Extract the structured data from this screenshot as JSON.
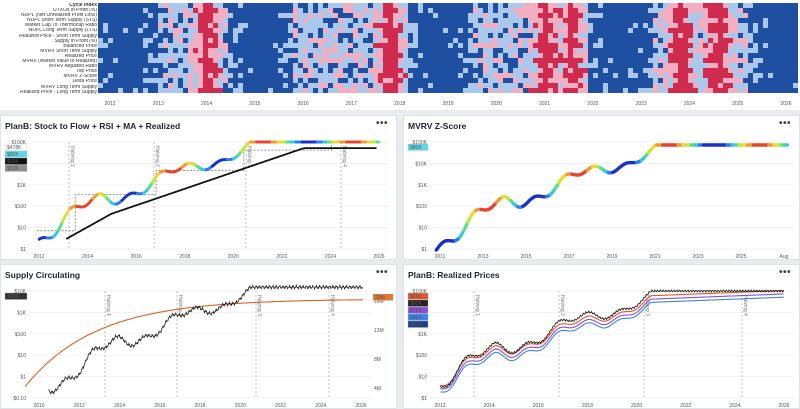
{
  "heatmap": {
    "rows": [
      "Cycle Index",
      "UTXOs in Profit (%)",
      "NUPL (Net Unrealized Profit Loss)",
      "NUPL Short Term Supply (STS)",
      "Market Cap To Thermocap Ratio",
      "NUPL Long Term Supply (LTS)",
      "Realized Price - Short Term Supply",
      "Supply in Profit (%)",
      "Balanced Price",
      "MVRV Short Term Supply",
      "Realized Price",
      "MVRV (Market Value to Realized)",
      "MVRV Adjusted Ratio",
      "Top Price",
      "MVRV Z-Score",
      "Delta Price",
      "MVRV Long Term Supply",
      "Realized Price - Long Term Supply"
    ],
    "years": [
      "2012",
      "2013",
      "2014",
      "2015",
      "2016",
      "2017",
      "2018",
      "2019",
      "2020",
      "2021",
      "2022",
      "2023",
      "2024",
      "2025",
      "2026"
    ],
    "colors": {
      "deep": "#1f4fa0",
      "light": "#a9c8ec",
      "pink": "#f3aec2",
      "red": "#d02a4e"
    }
  },
  "panels": {
    "s2f": {
      "title": "PlanB: Stock to Flow + RSI + MA + Realized",
      "menu": "•••",
      "badges": [
        {
          "text": "$478K",
          "bg": "#ffffff",
          "fg": "#333"
        },
        {
          "text": "$80K",
          "bg": "#62d6e8",
          "fg": "#fff"
        },
        {
          "text": "$65K",
          "bg": "#111111",
          "fg": "#fff"
        },
        {
          "text": "$53K",
          "bg": "#8e8e8e",
          "fg": "#fff"
        }
      ],
      "yticks": [
        "$100K",
        "$10K",
        "$1K",
        "$100",
        "$10",
        "$1"
      ],
      "xticks": [
        "2012",
        "2014",
        "2016",
        "2018",
        "2020",
        "2022",
        "2024",
        "2026"
      ],
      "halvings": [
        "Halving 1",
        "Halving 2",
        "Halving 3",
        "Halving 4"
      ]
    },
    "mvrvz": {
      "title": "MVRV Z-Score",
      "menu": "•••",
      "badges": [
        {
          "text": "$80K",
          "bg": "#62d6e8",
          "fg": "#fff"
        }
      ],
      "yticks": [
        "$100K",
        "$10K",
        "$1K",
        "$100",
        "$10",
        "$1"
      ],
      "xticks": [
        "2011",
        "2013",
        "2015",
        "2017",
        "2019",
        "2021",
        "2023",
        "2025",
        "Aug"
      ]
    },
    "supply": {
      "title": "Supply Circulating",
      "menu": "•••",
      "badges": [
        {
          "text": "$80K",
          "bg": "#333333",
          "fg": "#fff"
        }
      ],
      "right_badge": {
        "text": "20M",
        "bg": "#e07a30",
        "fg": "#fff"
      },
      "yticks": [
        "$10K",
        "$1K",
        "$100",
        "$10",
        "$1",
        "$0.10"
      ],
      "yticks_right": [
        "16M",
        "12M",
        "8M",
        "4M"
      ],
      "xticks": [
        "2010",
        "2012",
        "2014",
        "2016",
        "2018",
        "2020",
        "2022",
        "2024",
        "2026"
      ],
      "halvings": [
        "Halving 1",
        "Halving 2",
        "Halving 3",
        "Halving 4"
      ]
    },
    "realized": {
      "title": "PlanB: Realized Prices",
      "menu": "•••",
      "badges": [
        {
          "text": "$85K",
          "bg": "#e8562c",
          "fg": "#fff"
        },
        {
          "text": "$80K",
          "bg": "#222222",
          "fg": "#fff"
        },
        {
          "text": "$71K",
          "bg": "#8a4fd8",
          "fg": "#fff"
        },
        {
          "text": "$49K",
          "bg": "#3a86e8",
          "fg": "#fff"
        },
        {
          "text": "$53K",
          "bg": "#1f3f8c",
          "fg": "#fff"
        }
      ],
      "yticks": [
        "$100K",
        "$10K",
        "$1K",
        "$100",
        "$10",
        "$1"
      ],
      "xticks": [
        "2012",
        "2014",
        "2016",
        "2018",
        "2020",
        "2022",
        "2024",
        "2026"
      ],
      "halvings": [
        "Halving 1",
        "Halving 2",
        "Halving 3",
        "Halving 4"
      ]
    }
  }
}
